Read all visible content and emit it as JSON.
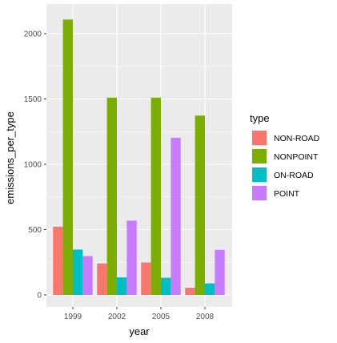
{
  "chart_data": {
    "type": "bar",
    "title": "",
    "xlabel": "year",
    "ylabel": "emissions_per_type",
    "categories": [
      "1999",
      "2002",
      "2005",
      "2008"
    ],
    "series": [
      {
        "name": "NON-ROAD",
        "color": "#F8766D",
        "values": [
          522,
          241,
          249,
          55
        ]
      },
      {
        "name": "NONPOINT",
        "color": "#7CAE00",
        "values": [
          2108,
          1510,
          1510,
          1373
        ]
      },
      {
        "name": "ON-ROAD",
        "color": "#00BFC4",
        "values": [
          347,
          134,
          131,
          88
        ]
      },
      {
        "name": "POINT",
        "color": "#C77CFF",
        "values": [
          297,
          569,
          1203,
          345
        ]
      }
    ],
    "ylim": [
      0,
      2250
    ],
    "yticks": [
      0,
      500,
      1000,
      1500,
      2000
    ],
    "grid": true,
    "legend": {
      "title": "type",
      "position": "right"
    },
    "panel_background": "#EBEBEB"
  }
}
